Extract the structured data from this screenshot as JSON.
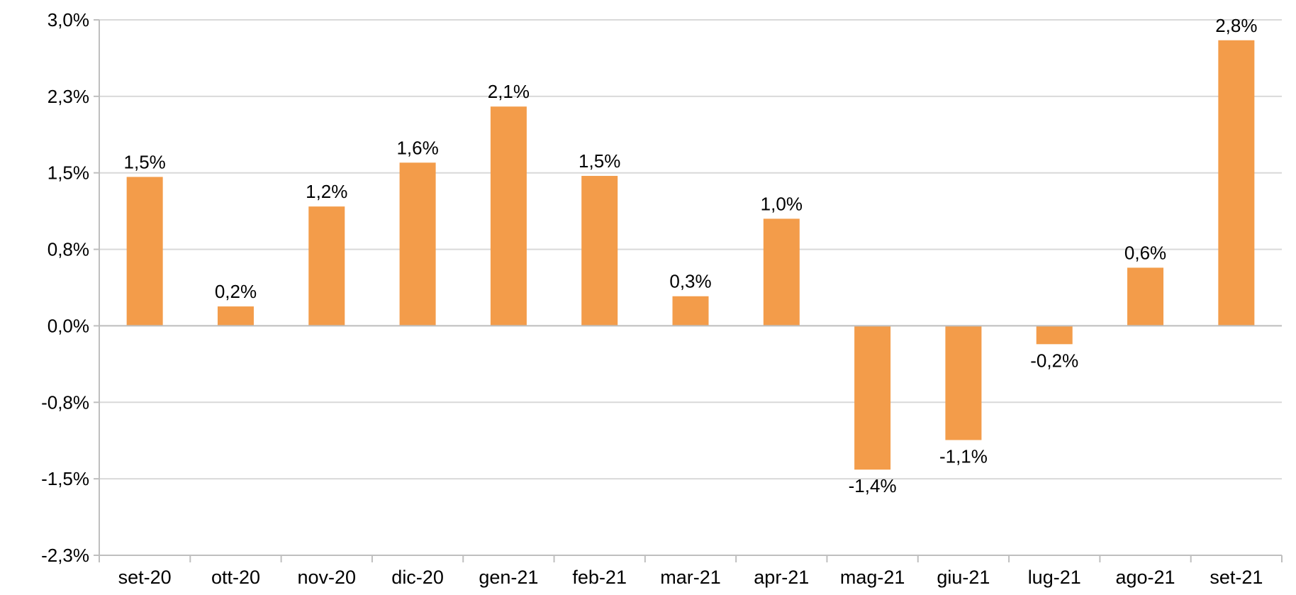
{
  "chart_data": {
    "type": "bar",
    "categories": [
      "set-20",
      "ott-20",
      "nov-20",
      "dic-20",
      "gen-21",
      "feb-21",
      "mar-21",
      "apr-21",
      "mag-21",
      "giu-21",
      "lug-21",
      "ago-21",
      "set-21"
    ],
    "series": [
      {
        "values": [
          1.46,
          0.19,
          1.17,
          1.6,
          2.15,
          1.47,
          0.29,
          1.05,
          -1.41,
          -1.12,
          -0.18,
          0.57,
          2.8
        ],
        "data_labels": [
          "1,5%",
          "0,2%",
          "1,2%",
          "1,6%",
          "2,1%",
          "1,5%",
          "0,3%",
          "1,0%",
          "-1,4%",
          "-1,1%",
          "-0,2%",
          "0,6%",
          "2,8%"
        ],
        "color": "#f39c4a"
      }
    ],
    "y_ticks": [
      3.0,
      2.25,
      1.5,
      0.75,
      0.0,
      -0.75,
      -1.5,
      -2.25
    ],
    "y_tick_labels": [
      "3,0%",
      "2,3%",
      "1,5%",
      "0,8%",
      "0,0%",
      "-0,8%",
      "-1,5%",
      "-2,3%"
    ],
    "ylim": [
      -2.25,
      3.0
    ],
    "grid": true,
    "legend": "none",
    "title": "",
    "xlabel": "",
    "ylabel": ""
  }
}
